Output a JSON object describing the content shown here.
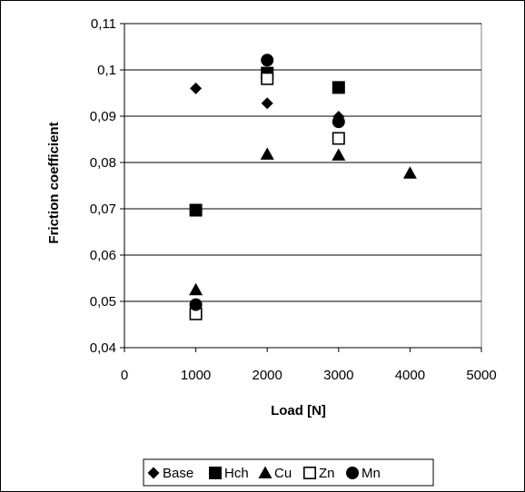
{
  "chart_data": {
    "type": "scatter",
    "title": "",
    "xlabel": "Load [N]",
    "ylabel": "Friction coefficient",
    "xlim": [
      0,
      5000
    ],
    "ylim": [
      0.04,
      0.11
    ],
    "x_ticks": [
      "0",
      "1000",
      "2000",
      "3000",
      "4000",
      "5000"
    ],
    "y_ticks": [
      "0,04",
      "0,05",
      "0,06",
      "0,07",
      "0,08",
      "0,09",
      "0,1",
      "0,11"
    ],
    "x_tick_values": [
      0,
      1000,
      2000,
      3000,
      4000,
      5000
    ],
    "y_tick_values": [
      0.04,
      0.05,
      0.06,
      0.07,
      0.08,
      0.09,
      0.1,
      0.11
    ],
    "grid": "horizontal",
    "legend_position": "bottom",
    "series": [
      {
        "name": "Base",
        "marker": "diamond-filled",
        "color": "#000000",
        "points": [
          {
            "x": 1000,
            "y": 0.096
          },
          {
            "x": 2000,
            "y": 0.0928
          },
          {
            "x": 3000,
            "y": 0.0899
          }
        ]
      },
      {
        "name": "Hch",
        "marker": "square-filled",
        "color": "#000000",
        "points": [
          {
            "x": 1000,
            "y": 0.0697
          },
          {
            "x": 2000,
            "y": 0.0993
          },
          {
            "x": 3000,
            "y": 0.0962
          }
        ]
      },
      {
        "name": "Cu",
        "marker": "triangle-filled",
        "color": "#000000",
        "points": [
          {
            "x": 1000,
            "y": 0.0525
          },
          {
            "x": 2000,
            "y": 0.0818
          },
          {
            "x": 3000,
            "y": 0.0816
          },
          {
            "x": 4000,
            "y": 0.0777
          }
        ]
      },
      {
        "name": "Zn",
        "marker": "square-open",
        "color": "#000000",
        "points": [
          {
            "x": 1000,
            "y": 0.0473
          },
          {
            "x": 2000,
            "y": 0.0981
          },
          {
            "x": 3000,
            "y": 0.0852
          }
        ]
      },
      {
        "name": "Mn",
        "marker": "circle-filled",
        "color": "#000000",
        "points": [
          {
            "x": 1000,
            "y": 0.0493
          },
          {
            "x": 2000,
            "y": 0.1021
          },
          {
            "x": 3000,
            "y": 0.0888
          }
        ]
      }
    ]
  }
}
